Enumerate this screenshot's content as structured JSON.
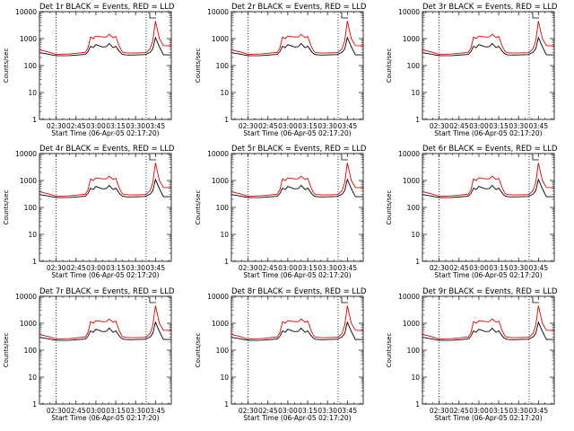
{
  "panels": [
    {
      "title": "Det 1r BLACK = Events, RED = LLD",
      "xlabel": "Start Time (06-Apr-05 02:17:20)",
      "ylabel": "Counts/sec"
    },
    {
      "title": "Det 2r BLACK = Events, RED = LLD",
      "xlabel": "Start Time (06-Apr-05 02:17:20)",
      "ylabel": "Counts/sec"
    },
    {
      "title": "Det 3r BLACK = Events, RED = LLD",
      "xlabel": "Start Time (06-Apr-05 02:17:20)",
      "ylabel": "Counts/sec"
    },
    {
      "title": "Det 4r BLACK = Events, RED = LLD",
      "xlabel": "Start Time (06-Apr-05 02:17:20)",
      "ylabel": "Counts/sec"
    },
    {
      "title": "Det 5r BLACK = Events, RED = LLD",
      "xlabel": "Start Time (06-Apr-05 02:17:20)",
      "ylabel": "Counts/sec"
    },
    {
      "title": "Det 6r BLACK = Events, RED = LLD",
      "xlabel": "Start Time (06-Apr-05 02:17:20)",
      "ylabel": "Counts/sec"
    },
    {
      "title": "Det 7r BLACK = Events, RED = LLD",
      "xlabel": "Start Time (06-Apr-05 02:17:20)",
      "ylabel": "Counts/sec"
    },
    {
      "title": "Det 8r BLACK = Events, RED = LLD",
      "xlabel": "Start Time (06-Apr-05 02:17:20)",
      "ylabel": "Counts/sec"
    },
    {
      "title": "Det 9r BLACK = Events, RED = LLD",
      "xlabel": "Start Time (06-Apr-05 02:17:20)",
      "ylabel": "Counts/sec"
    }
  ],
  "chart_data": {
    "type": "line",
    "grid": false,
    "layout": "3x3",
    "xlim": [
      "02:17:20",
      "03:57"
    ],
    "x_ticks": [
      "02:30",
      "02:45",
      "03:00",
      "03:15",
      "03:30",
      "03:45"
    ],
    "y_scale": "log",
    "ylim": [
      1,
      10000
    ],
    "y_ticks": [
      "1",
      "10",
      "100",
      "1000",
      "10000"
    ],
    "reference_lines_x": [
      "02:30",
      "03:38"
    ],
    "reference_line_style": "dotted",
    "colors": {
      "events": "#000000",
      "lld": "#dd0000"
    },
    "x": [
      "02:17:20",
      "02:24",
      "02:30",
      "02:40",
      "02:52",
      "02:54",
      "02:56",
      "02:58",
      "03:00",
      "03:05",
      "03:08",
      "03:10",
      "03:13",
      "03:15",
      "03:18",
      "03:20",
      "03:22",
      "03:26",
      "03:32",
      "03:37",
      "03:39",
      "03:41",
      "03:43",
      "03:45",
      "03:48",
      "03:51",
      "03:57"
    ],
    "series": [
      {
        "color": "#000000",
        "values": [
          300,
          265,
          230,
          235,
          260,
          330,
          520,
          460,
          600,
          490,
          500,
          660,
          460,
          520,
          320,
          265,
          250,
          245,
          250,
          255,
          280,
          310,
          420,
          1100,
          500,
          250,
          250
        ]
      },
      {
        "color": "#dd0000",
        "values": [
          380,
          320,
          260,
          270,
          310,
          450,
          1150,
          1000,
          1250,
          1150,
          1150,
          1450,
          1100,
          1200,
          480,
          320,
          300,
          290,
          295,
          300,
          340,
          420,
          850,
          4500,
          1000,
          550,
          540
        ]
      }
    ]
  }
}
